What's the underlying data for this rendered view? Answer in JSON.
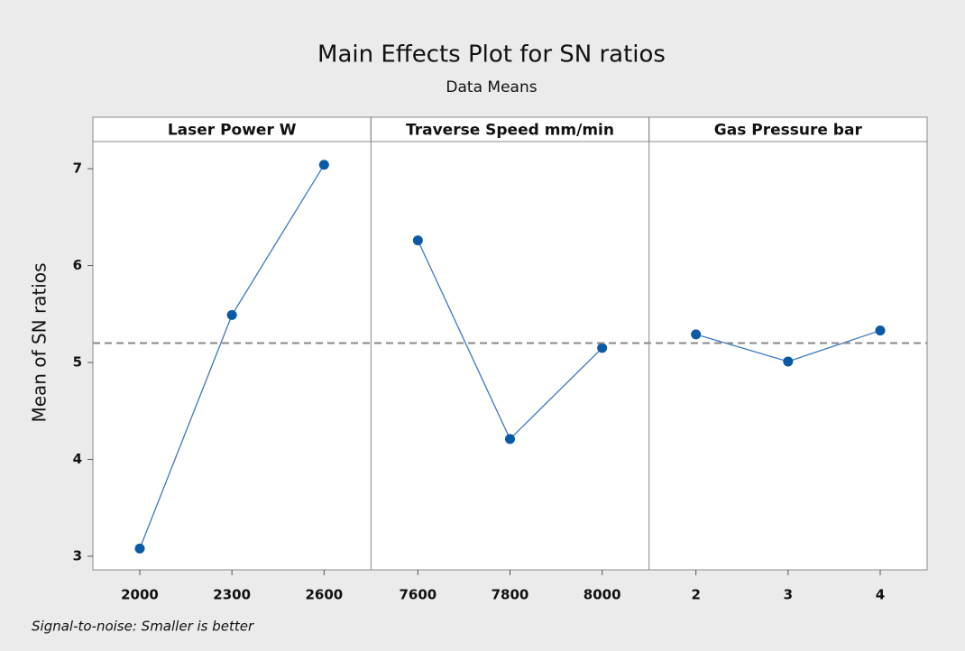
{
  "chart_data": {
    "type": "line",
    "title": "Main Effects Plot for SN ratios",
    "subtitle": "Data Means",
    "ylabel": "Mean of SN ratios",
    "footnote": "Signal-to-noise: Smaller is better",
    "ylim": [
      2.86,
      7.28
    ],
    "yticks": [
      3,
      4,
      5,
      6,
      7
    ],
    "reference_line": 5.2,
    "color": "#0b5aa8",
    "line_color": "#3a78c4",
    "panels": [
      {
        "label": "Laser Power W",
        "categories": [
          "2000",
          "2300",
          "2600"
        ],
        "values": [
          3.08,
          5.49,
          7.04
        ]
      },
      {
        "label": "Traverse Speed mm/min",
        "categories": [
          "7600",
          "7800",
          "8000"
        ],
        "values": [
          6.26,
          4.21,
          5.15
        ]
      },
      {
        "label": "Gas Pressure bar",
        "categories": [
          "2",
          "3",
          "4"
        ],
        "values": [
          5.29,
          5.01,
          5.33
        ]
      }
    ]
  }
}
